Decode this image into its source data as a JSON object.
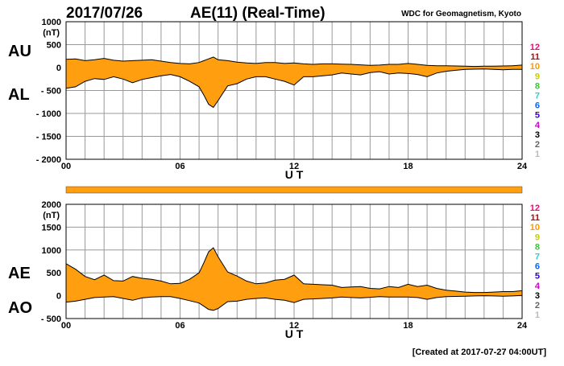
{
  "header": {
    "date": "2017/07/26",
    "index_title": "AE(11) (Real-Time)",
    "provider": "WDC for Geomagnetism, Kyoto"
  },
  "footer": {
    "created": "[Created at 2017-07-27 04:00UT]"
  },
  "legend": {
    "numbers": [
      "12",
      "11",
      "10",
      "9",
      "8",
      "7",
      "6",
      "5",
      "4",
      "3",
      "2",
      "1"
    ],
    "colors": [
      "#ff0080",
      "#cc0000",
      "#ff9900",
      "#cccc00",
      "#33cc33",
      "#33cccc",
      "#0066ff",
      "#3300cc",
      "#cc00cc",
      "#000000",
      "#666666",
      "#bbbbbb"
    ]
  },
  "colors": {
    "fill": "#ff9f10",
    "line": "#000000",
    "grid": "#999999"
  },
  "chart_data": [
    {
      "type": "area",
      "name": "AU/AL",
      "label_top": "AU",
      "label_bottom": "AL",
      "unit": "(nT)",
      "xlabel": "U T",
      "xlim": [
        0,
        24
      ],
      "ylim": [
        -2000,
        1000
      ],
      "yticks": [
        1000,
        500,
        0,
        -500,
        -1000,
        -1500,
        -2000
      ],
      "ytick_labels": [
        "1000",
        "500",
        "0",
        "- 500",
        "- 1000",
        "- 1500",
        "- 2000"
      ],
      "xticks": [
        0,
        6,
        12,
        18,
        24
      ],
      "xtick_labels": [
        "00",
        "06",
        "12",
        "18",
        "24"
      ],
      "x": [
        0,
        0.5,
        1,
        1.5,
        2,
        2.5,
        3,
        3.5,
        4,
        4.5,
        5,
        5.5,
        6,
        6.5,
        7,
        7.25,
        7.5,
        7.75,
        8,
        8.5,
        9,
        9.5,
        10,
        10.5,
        11,
        11.5,
        12,
        12.5,
        13,
        13.5,
        14,
        14.5,
        15,
        15.5,
        16,
        16.5,
        17,
        17.5,
        18,
        18.5,
        19,
        19.5,
        20,
        20.5,
        21,
        21.5,
        22,
        22.5,
        23,
        23.5,
        24
      ],
      "series": [
        {
          "name": "AU",
          "values": [
            180,
            190,
            150,
            170,
            200,
            160,
            140,
            150,
            160,
            170,
            140,
            110,
            90,
            80,
            110,
            150,
            190,
            230,
            170,
            150,
            120,
            100,
            90,
            110,
            110,
            90,
            100,
            80,
            70,
            80,
            80,
            75,
            70,
            60,
            50,
            55,
            70,
            70,
            90,
            70,
            50,
            40,
            40,
            35,
            30,
            25,
            30,
            30,
            35,
            40,
            55
          ]
        },
        {
          "name": "AL",
          "values": [
            -450,
            -420,
            -300,
            -240,
            -260,
            -200,
            -250,
            -330,
            -260,
            -220,
            -180,
            -150,
            -200,
            -300,
            -420,
            -600,
            -800,
            -870,
            -720,
            -400,
            -350,
            -250,
            -200,
            -200,
            -250,
            -300,
            -380,
            -200,
            -200,
            -180,
            -160,
            -120,
            -140,
            -160,
            -110,
            -90,
            -140,
            -120,
            -130,
            -150,
            -200,
            -120,
            -80,
            -60,
            -40,
            -35,
            -30,
            -40,
            -50,
            -40,
            -40
          ]
        }
      ]
    },
    {
      "type": "area",
      "name": "AE/AO",
      "label_top": "AE",
      "label_bottom": "AO",
      "unit": "(nT)",
      "xlabel": "U T",
      "xlim": [
        0,
        24
      ],
      "ylim": [
        -500,
        2000
      ],
      "yticks": [
        2000,
        1500,
        1000,
        500,
        0,
        -500
      ],
      "ytick_labels": [
        "2000",
        "1500",
        "1000",
        "500",
        "0",
        "- 500"
      ],
      "xticks": [
        0,
        6,
        12,
        18,
        24
      ],
      "xtick_labels": [
        "00",
        "06",
        "12",
        "18",
        "24"
      ],
      "x": [
        0,
        0.5,
        1,
        1.5,
        2,
        2.5,
        3,
        3.5,
        4,
        4.5,
        5,
        5.5,
        6,
        6.5,
        7,
        7.25,
        7.5,
        7.75,
        8,
        8.5,
        9,
        9.5,
        10,
        10.5,
        11,
        11.5,
        12,
        12.5,
        13,
        13.5,
        14,
        14.5,
        15,
        15.5,
        16,
        16.5,
        17,
        17.5,
        18,
        18.5,
        19,
        19.5,
        20,
        20.5,
        21,
        21.5,
        22,
        22.5,
        23,
        23.5,
        24
      ],
      "series": [
        {
          "name": "AE",
          "values": [
            700,
            580,
            420,
            350,
            450,
            330,
            320,
            420,
            380,
            360,
            320,
            260,
            270,
            360,
            500,
            720,
            960,
            1050,
            850,
            520,
            430,
            320,
            260,
            280,
            340,
            360,
            450,
            260,
            250,
            240,
            230,
            180,
            190,
            200,
            160,
            150,
            200,
            180,
            250,
            200,
            230,
            160,
            120,
            100,
            80,
            70,
            70,
            80,
            90,
            90,
            110
          ]
        },
        {
          "name": "AO",
          "values": [
            -140,
            -120,
            -80,
            -40,
            -30,
            -20,
            -60,
            -100,
            -50,
            -30,
            -20,
            -20,
            -60,
            -110,
            -160,
            -230,
            -300,
            -320,
            -280,
            -130,
            -120,
            -80,
            -60,
            -50,
            -80,
            -100,
            -150,
            -80,
            -70,
            -60,
            -50,
            -30,
            -40,
            -50,
            -35,
            -20,
            -30,
            -30,
            -30,
            -40,
            -80,
            -40,
            -20,
            -15,
            -10,
            -5,
            0,
            -5,
            -10,
            -5,
            5
          ]
        }
      ]
    }
  ]
}
